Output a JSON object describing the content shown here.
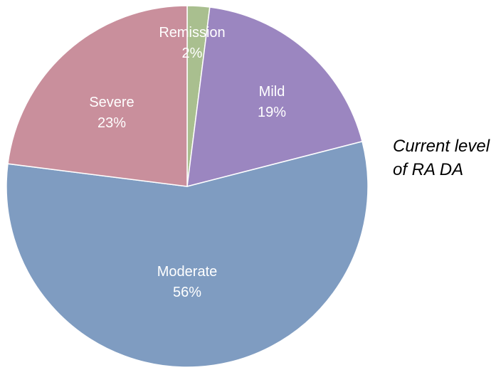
{
  "chart_data": {
    "type": "pie",
    "title_lines": [
      "Current level",
      "of RA DA"
    ],
    "slices": [
      {
        "label": "Remission",
        "value": 2,
        "display": "2%",
        "color": "#a9bf8f"
      },
      {
        "label": "Mild",
        "value": 19,
        "display": "19%",
        "color": "#9b86c0"
      },
      {
        "label": "Moderate",
        "value": 56,
        "display": "56%",
        "color": "#7f9cc1"
      },
      {
        "label": "Severe",
        "value": 23,
        "display": "23%",
        "color": "#c98f9c"
      }
    ],
    "start": "12 o'clock",
    "direction": "clockwise",
    "legend": "none"
  }
}
